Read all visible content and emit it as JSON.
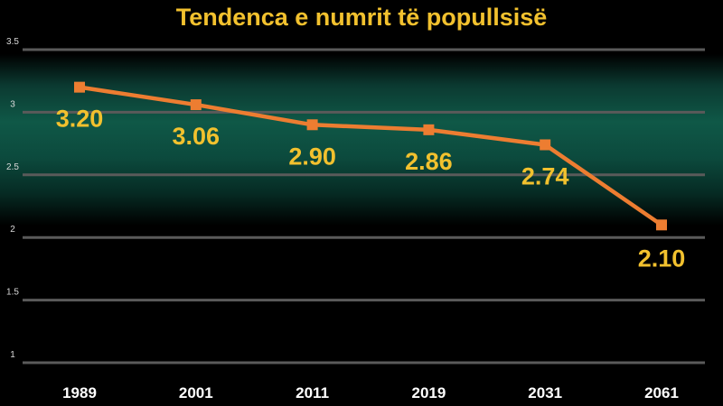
{
  "chart_data": {
    "type": "line",
    "title": "Tendenca e numrit të popullsisë",
    "xlabel": "",
    "ylabel": "",
    "categories": [
      "1989",
      "2001",
      "2011",
      "2019",
      "2031",
      "2061"
    ],
    "series": [
      {
        "values": [
          3.2,
          3.06,
          2.9,
          2.86,
          2.74,
          2.1
        ],
        "labels": [
          "3.20",
          "3.06",
          "2.90",
          "2.86",
          "2.74",
          "2.10"
        ],
        "color": "#ed7d31"
      }
    ],
    "ylim": [
      1,
      3.5
    ],
    "y_ticks": [
      "1",
      "1.5",
      "2",
      "2.5",
      "3",
      "3.5"
    ],
    "y_tick_values": [
      1,
      1.5,
      2,
      2.5,
      3,
      3.5
    ],
    "grid": true,
    "legend": "none"
  },
  "colors": {
    "title": "#f2c12e",
    "line": "#ed7d31",
    "data_label": "#f2c12e",
    "background": "#000000",
    "band": "#0f5847"
  }
}
